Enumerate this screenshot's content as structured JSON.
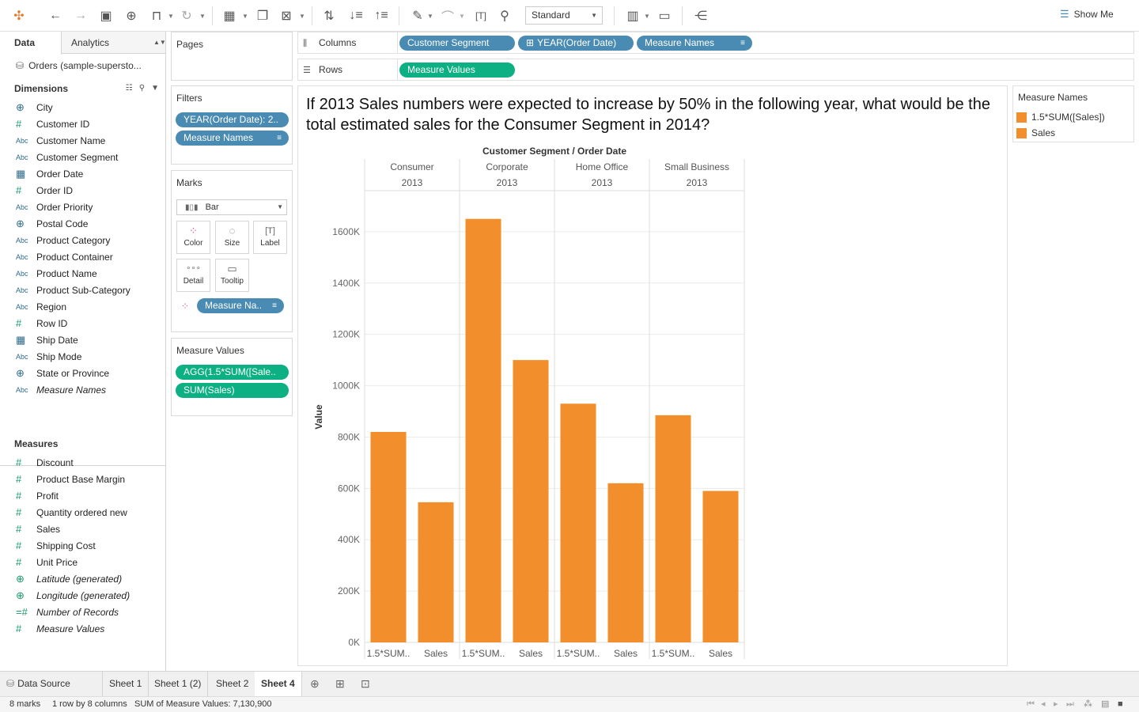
{
  "toolbar": {
    "fit_value": "Standard",
    "show_me_label": "Show Me"
  },
  "left_panel": {
    "tab_data": "Data",
    "tab_analytics": "Analytics",
    "datasource": "Orders (sample-supersto...",
    "dimensions_header": "Dimensions",
    "measures_header": "Measures",
    "dimensions": [
      {
        "icon": "globe",
        "name": "City"
      },
      {
        "icon": "hash",
        "name": "Customer ID"
      },
      {
        "icon": "abc",
        "name": "Customer Name"
      },
      {
        "icon": "abc",
        "name": "Customer Segment"
      },
      {
        "icon": "calendar",
        "name": "Order Date"
      },
      {
        "icon": "hash",
        "name": "Order ID"
      },
      {
        "icon": "abc",
        "name": "Order Priority"
      },
      {
        "icon": "globe",
        "name": "Postal Code"
      },
      {
        "icon": "abc",
        "name": "Product Category"
      },
      {
        "icon": "abc",
        "name": "Product Container"
      },
      {
        "icon": "abc",
        "name": "Product Name"
      },
      {
        "icon": "abc",
        "name": "Product Sub-Category"
      },
      {
        "icon": "abc",
        "name": "Region"
      },
      {
        "icon": "hash",
        "name": "Row ID"
      },
      {
        "icon": "calendar",
        "name": "Ship Date"
      },
      {
        "icon": "abc",
        "name": "Ship Mode"
      },
      {
        "icon": "globe",
        "name": "State or Province"
      },
      {
        "icon": "abc",
        "name": "Measure Names",
        "italic": true
      }
    ],
    "measures": [
      {
        "icon": "hash",
        "name": "Discount"
      },
      {
        "icon": "hash",
        "name": "Product Base Margin"
      },
      {
        "icon": "hash",
        "name": "Profit"
      },
      {
        "icon": "hash",
        "name": "Quantity ordered new"
      },
      {
        "icon": "hash",
        "name": "Sales"
      },
      {
        "icon": "hash",
        "name": "Shipping Cost"
      },
      {
        "icon": "hash",
        "name": "Unit Price"
      },
      {
        "icon": "globe",
        "name": "Latitude (generated)",
        "italic": true
      },
      {
        "icon": "globe",
        "name": "Longitude (generated)",
        "italic": true
      },
      {
        "icon": "hash-eq",
        "name": "Number of Records",
        "italic": true
      },
      {
        "icon": "hash",
        "name": "Measure Values",
        "italic": true
      }
    ]
  },
  "cards": {
    "pages_title": "Pages",
    "filters_title": "Filters",
    "filters": [
      "YEAR(Order Date): 2..",
      "Measure Names"
    ],
    "marks_title": "Marks",
    "mark_type": "Bar",
    "mark_buttons": [
      "Color",
      "Size",
      "Label",
      "Detail",
      "Tooltip"
    ],
    "marks_pill": "Measure Na..",
    "measure_values_title": "Measure Values",
    "measure_values": [
      "AGG(1.5*SUM([Sale..",
      "SUM(Sales)"
    ]
  },
  "shelves": {
    "columns_label": "Columns",
    "rows_label": "Rows",
    "columns": [
      "Customer Segment",
      "YEAR(Order Date)",
      "Measure Names"
    ],
    "rows": [
      "Measure Values"
    ]
  },
  "viz": {
    "title": "If 2013 Sales numbers were expected to increase by 50% in the following year, what would be the total estimated sales for the Consumer Segment in 2014?",
    "header_title": "Customer Segment  /  Order Date",
    "y_label": "Value"
  },
  "chart_data": {
    "type": "bar",
    "panes": [
      {
        "segment": "Consumer",
        "year": "2013"
      },
      {
        "segment": "Corporate",
        "year": "2013"
      },
      {
        "segment": "Home Office",
        "year": "2013"
      },
      {
        "segment": "Small Business",
        "year": "2013"
      }
    ],
    "categories": [
      "1.5*SUM..",
      "Sales",
      "1.5*SUM..",
      "Sales",
      "1.5*SUM..",
      "Sales",
      "1.5*SUM..",
      "Sales"
    ],
    "values": [
      820000,
      546000,
      1650000,
      1100000,
      930000,
      620000,
      885000,
      590000
    ],
    "ylabel": "Value",
    "ylim": [
      0,
      1760000
    ],
    "yticks": [
      0,
      200000,
      400000,
      600000,
      800000,
      1000000,
      1200000,
      1400000,
      1600000
    ],
    "ytick_labels": [
      "0K",
      "200K",
      "400K",
      "600K",
      "800K",
      "1000K",
      "1200K",
      "1400K",
      "1600K"
    ],
    "bar_color": "#f28e2b",
    "grid": true
  },
  "legend": {
    "title": "Measure Names",
    "items": [
      {
        "label": "1.5*SUM([Sales])",
        "color": "#f28e2b"
      },
      {
        "label": "Sales",
        "color": "#f28e2b"
      }
    ]
  },
  "sheet_tabs": {
    "data_source": "Data Source",
    "sheets": [
      "Sheet 1",
      "Sheet 1 (2)",
      "Sheet 2",
      "Sheet 4"
    ],
    "active": "Sheet 4"
  },
  "status": {
    "marks": "8 marks",
    "dims": "1 row by 8 columns",
    "sum": "SUM of Measure Values: 7,130,900"
  }
}
